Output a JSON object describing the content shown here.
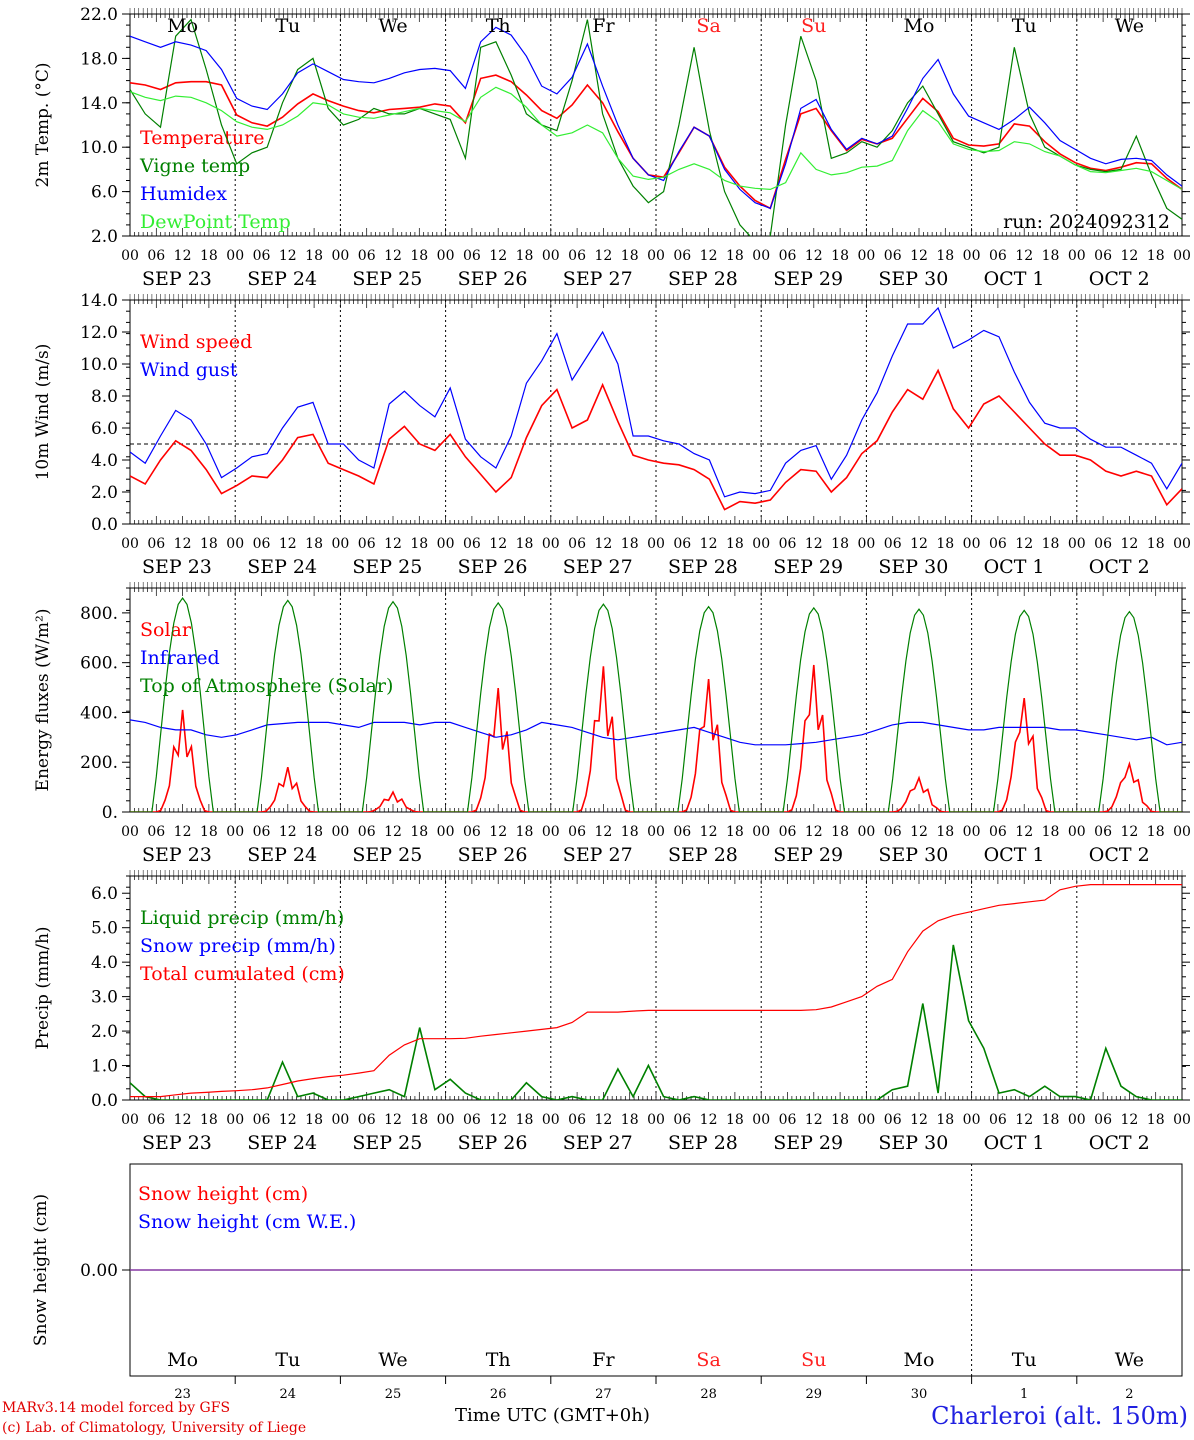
{
  "chart_data": {
    "type": "line",
    "run_label": "run: 2024092312",
    "station": "Charleroi (alt. 150m)",
    "credits": [
      "MARv3.14 model forced by GFS",
      "(c) Lab. of Climatology, University of Liege"
    ],
    "xlabel": "Time UTC (GMT+0h)",
    "hour_ticks": [
      "00",
      "06",
      "12",
      "18"
    ],
    "date_labels": [
      "SEP 23",
      "SEP 24",
      "SEP 25",
      "SEP 26",
      "SEP 27",
      "SEP 28",
      "SEP 29",
      "SEP 30",
      "OCT  1",
      "OCT  2"
    ],
    "weekday_labels": [
      "Mo",
      "Tu",
      "We",
      "Th",
      "Fr",
      "Sa",
      "Su",
      "Mo",
      "Tu",
      "We"
    ],
    "day_numbers": [
      "23",
      "24",
      "25",
      "26",
      "27",
      "28",
      "29",
      "30",
      "1",
      "2"
    ],
    "weekend_color": "#ff2020",
    "x_range_hours": [
      0,
      240
    ],
    "panels": [
      {
        "id": "temperature",
        "ylabel": "2m Temp. (°C)",
        "ylim": [
          2,
          22
        ],
        "yticks": [
          "2.0",
          "6.0",
          "10.0",
          "14.0",
          "18.0",
          "22.0"
        ],
        "series": [
          {
            "name": "Temperature",
            "color": "#ff0000",
            "values": [
              15.8,
              15.6,
              15.2,
              15.8,
              15.9,
              15.9,
              15.6,
              12.9,
              12.2,
              11.9,
              12.7,
              13.9,
              14.8,
              14.2,
              13.7,
              13.3,
              13.1,
              13.4,
              13.5,
              13.6,
              13.9,
              13.7,
              12.2,
              16.2,
              16.5,
              15.9,
              14.7,
              13.3,
              12.6,
              13.8,
              15.6,
              14.0,
              11.4,
              9.0,
              7.5,
              7.3,
              9.5,
              11.8,
              11.0,
              8.2,
              6.5,
              5.2,
              4.5,
              8.9,
              13.0,
              13.5,
              11.5,
              9.7,
              10.7,
              10.3,
              10.8,
              12.6,
              14.4,
              13.2,
              10.8,
              10.2,
              10.1,
              10.3,
              12.1,
              11.9,
              10.5,
              9.4,
              8.6,
              8.1,
              7.9,
              8.2,
              8.6,
              8.5,
              7.2,
              6.2
            ]
          },
          {
            "name": "Vigne temp",
            "color": "#008000",
            "values": [
              15.2,
              13.0,
              11.8,
              20.0,
              21.5,
              17.0,
              12.0,
              8.5,
              9.5,
              10.0,
              14.0,
              17.0,
              18.0,
              13.5,
              12.0,
              12.5,
              13.5,
              13.0,
              13.0,
              13.5,
              13.0,
              12.5,
              9.0,
              19.0,
              19.5,
              16.5,
              13.0,
              12.0,
              11.5,
              16.0,
              21.5,
              13.0,
              9.0,
              6.5,
              5.0,
              6.0,
              12.0,
              19.0,
              11.5,
              6.0,
              3.0,
              1.5,
              2.0,
              12.0,
              20.0,
              16.0,
              9.0,
              9.5,
              10.5,
              10.0,
              11.5,
              14.0,
              15.5,
              13.0,
              10.5,
              10.0,
              9.5,
              10.0,
              19.0,
              13.0,
              10.0,
              9.2,
              8.4,
              8.0,
              7.8,
              8.0,
              11.0,
              7.5,
              4.5,
              3.5
            ]
          },
          {
            "name": "Humidex",
            "color": "#0000ff",
            "values": [
              20.0,
              19.5,
              19.0,
              19.5,
              19.2,
              18.7,
              17.0,
              14.4,
              13.7,
              13.4,
              14.8,
              16.7,
              17.5,
              16.8,
              16.1,
              15.9,
              15.8,
              16.2,
              16.7,
              17.0,
              17.1,
              16.9,
              15.3,
              19.5,
              20.8,
              20.1,
              18.2,
              15.5,
              14.8,
              16.3,
              19.3,
              15.5,
              12.0,
              9.0,
              7.5,
              7.0,
              9.6,
              11.8,
              11.0,
              8.0,
              6.2,
              5.0,
              4.5,
              8.5,
              13.5,
              14.3,
              11.6,
              9.8,
              10.8,
              10.3,
              11.0,
              13.5,
              16.2,
              17.9,
              14.8,
              12.8,
              12.2,
              11.6,
              12.5,
              13.6,
              12.2,
              10.6,
              9.8,
              9.0,
              8.5,
              8.9,
              9.0,
              8.8,
              7.5,
              6.5
            ]
          },
          {
            "name": "DewPoint Temp",
            "color": "#33ee33",
            "values": [
              15.0,
              14.5,
              14.2,
              14.6,
              14.5,
              14.0,
              13.3,
              12.3,
              11.8,
              11.6,
              12.0,
              12.8,
              14.0,
              13.8,
              13.0,
              12.7,
              12.6,
              12.9,
              13.2,
              13.5,
              13.3,
              13.1,
              12.3,
              14.5,
              15.4,
              14.8,
              13.6,
              12.0,
              11.0,
              11.3,
              12.0,
              11.3,
              9.0,
              7.4,
              7.1,
              7.3,
              8.0,
              8.5,
              8.0,
              7.0,
              6.5,
              6.3,
              6.2,
              6.8,
              9.5,
              8.0,
              7.5,
              7.7,
              8.2,
              8.3,
              8.8,
              11.5,
              13.3,
              12.3,
              10.3,
              9.8,
              9.6,
              9.7,
              10.5,
              10.3,
              9.6,
              9.2,
              8.4,
              7.8,
              7.7,
              7.9,
              8.1,
              7.8,
              7.0,
              6.2
            ]
          }
        ],
        "hlines": []
      },
      {
        "id": "wind",
        "ylabel": "10m Wind (m/s)",
        "ylim": [
          0,
          14
        ],
        "yticks": [
          "0.0",
          "2.0",
          "4.0",
          "6.0",
          "8.0",
          "10.0",
          "12.0",
          "14.0"
        ],
        "series": [
          {
            "name": "Wind speed",
            "color": "#ff0000",
            "values": [
              3.0,
              2.5,
              4.0,
              5.2,
              4.6,
              3.4,
              1.9,
              2.4,
              3.0,
              2.9,
              4.0,
              5.4,
              5.6,
              3.8,
              3.4,
              3.0,
              2.5,
              5.3,
              6.1,
              5.0,
              4.6,
              5.6,
              4.2,
              3.1,
              2.0,
              2.9,
              5.4,
              7.4,
              8.4,
              6.0,
              6.5,
              8.7,
              6.4,
              4.3,
              4.0,
              3.8,
              3.7,
              3.4,
              2.8,
              0.9,
              1.4,
              1.3,
              1.5,
              2.6,
              3.4,
              3.3,
              2.0,
              2.9,
              4.4,
              5.2,
              7.0,
              8.4,
              7.8,
              9.6,
              7.2,
              6.0,
              7.5,
              8.0,
              7.0,
              6.0,
              5.0,
              4.3,
              4.3,
              4.0,
              3.3,
              3.0,
              3.3,
              3.0,
              1.2,
              2.2
            ]
          },
          {
            "name": "Wind gust",
            "color": "#0000ff",
            "values": [
              4.5,
              3.8,
              5.5,
              7.1,
              6.5,
              5.0,
              2.9,
              3.5,
              4.2,
              4.4,
              6.0,
              7.3,
              7.6,
              5.0,
              5.0,
              4.0,
              3.5,
              7.5,
              8.3,
              7.4,
              6.7,
              8.5,
              5.3,
              4.2,
              3.5,
              5.5,
              8.8,
              10.2,
              11.9,
              9.0,
              10.5,
              12.0,
              10.0,
              5.5,
              5.5,
              5.2,
              5.0,
              4.4,
              4.0,
              1.7,
              2.0,
              1.9,
              2.1,
              3.8,
              4.6,
              4.9,
              2.8,
              4.3,
              6.5,
              8.2,
              10.5,
              12.5,
              12.5,
              13.5,
              11.0,
              11.5,
              12.1,
              11.7,
              9.5,
              7.6,
              6.3,
              6.0,
              6.0,
              5.3,
              4.8,
              4.8,
              4.3,
              3.8,
              2.2,
              3.8
            ]
          }
        ],
        "hlines": [
          5.0
        ]
      },
      {
        "id": "energy",
        "ylabel": "Energy fluxes (W/m²)",
        "ylim": [
          0,
          900
        ],
        "yticks": [
          "0.",
          "200.",
          "400.",
          "600.",
          "800."
        ],
        "ytick_values": [
          0,
          200,
          400,
          600,
          800
        ],
        "series": [
          {
            "name": "Solar",
            "color": "#ff0000",
            "values": [
              0,
              0,
              0,
              0,
              0,
              0,
              60,
              160,
              300,
              410,
              300,
              200,
              260,
              120,
              40,
              20,
              0,
              0,
              0,
              0,
              0,
              0,
              0
            ],
            "daily_peaks": [
              410,
              180,
              80,
              500,
              590,
              540,
              600,
              140,
              470,
              200
            ]
          },
          {
            "name": "Infrared",
            "color": "#0000ff",
            "values": [
              370,
              360,
              340,
              330,
              330,
              310,
              300,
              310,
              330,
              350,
              355,
              360,
              360,
              360,
              350,
              340,
              360,
              360,
              360,
              350,
              360,
              360,
              340,
              320,
              300,
              310,
              330,
              360,
              350,
              340,
              320,
              300,
              290,
              300,
              310,
              320,
              330,
              340,
              320,
              300,
              280,
              270,
              270,
              270,
              275,
              280,
              290,
              300,
              310,
              330,
              350,
              360,
              360,
              350,
              340,
              330,
              330,
              340,
              340,
              340,
              340,
              330,
              330,
              320,
              310,
              300,
              290,
              300,
              270,
              280
            ]
          },
          {
            "name": "Top of Atmosphere (Solar)",
            "color": "#008000",
            "daily_peaks": [
              860,
              850,
              845,
              840,
              835,
              825,
              820,
              815,
              810,
              805
            ]
          }
        ],
        "hlines": []
      },
      {
        "id": "precip",
        "ylabel": "Precip (mm/h)",
        "ylim": [
          0,
          6.5
        ],
        "yticks": [
          "0.0",
          "1.0",
          "2.0",
          "3.0",
          "4.0",
          "5.0",
          "6.0"
        ],
        "series": [
          {
            "name": "Liquid precip (mm/h)",
            "color": "#008000",
            "values": [
              0.5,
              0.1,
              0.0,
              0.0,
              0.0,
              0.0,
              0.0,
              0.0,
              0.0,
              0.0,
              1.1,
              0.1,
              0.2,
              0.0,
              0.0,
              0.1,
              0.2,
              0.3,
              0.1,
              2.1,
              0.3,
              0.6,
              0.2,
              0.0,
              0.0,
              0.0,
              0.5,
              0.1,
              0.0,
              0.1,
              0.0,
              0.0,
              0.9,
              0.1,
              1.0,
              0.1,
              0.0,
              0.1,
              0.0,
              0.0,
              0.0,
              0.0,
              0.0,
              0.0,
              0.0,
              0.0,
              0.0,
              0.0,
              0.0,
              0.0,
              0.3,
              0.4,
              2.8,
              0.2,
              4.5,
              2.3,
              1.5,
              0.2,
              0.3,
              0.1,
              0.4,
              0.1,
              0.1,
              0.0,
              1.5,
              0.4,
              0.1,
              0.0,
              0.0,
              0.0
            ]
          },
          {
            "name": "Snow precip (mm/h)",
            "color": "#0000ff",
            "values": []
          },
          {
            "name": "Total cumulated (cm)",
            "color": "#ff0000",
            "values": [
              0.1,
              0.1,
              0.1,
              0.15,
              0.2,
              0.22,
              0.25,
              0.27,
              0.3,
              0.35,
              0.45,
              0.55,
              0.62,
              0.68,
              0.72,
              0.78,
              0.85,
              1.3,
              1.6,
              1.78,
              1.78,
              1.78,
              1.79,
              1.85,
              1.9,
              1.95,
              2.0,
              2.05,
              2.1,
              2.25,
              2.55,
              2.55,
              2.55,
              2.58,
              2.6,
              2.6,
              2.6,
              2.6,
              2.6,
              2.6,
              2.6,
              2.6,
              2.6,
              2.6,
              2.6,
              2.62,
              2.7,
              2.85,
              3.0,
              3.3,
              3.5,
              4.3,
              4.9,
              5.2,
              5.35,
              5.45,
              5.55,
              5.65,
              5.7,
              5.75,
              5.8,
              6.1,
              6.2,
              6.25,
              6.25,
              6.25,
              6.25,
              6.25,
              6.25,
              6.25
            ]
          }
        ],
        "hlines": []
      },
      {
        "id": "snow",
        "ylabel": "Snow height (cm)",
        "yticks": [
          "0.00"
        ],
        "series": [
          {
            "name": "Snow height (cm)",
            "color": "#ff0000",
            "values": [
              0,
              0
            ]
          },
          {
            "name": "Snow height (cm W.E.)",
            "color": "#0000ff",
            "values": [
              0,
              0
            ]
          }
        ],
        "hlines": []
      }
    ]
  }
}
